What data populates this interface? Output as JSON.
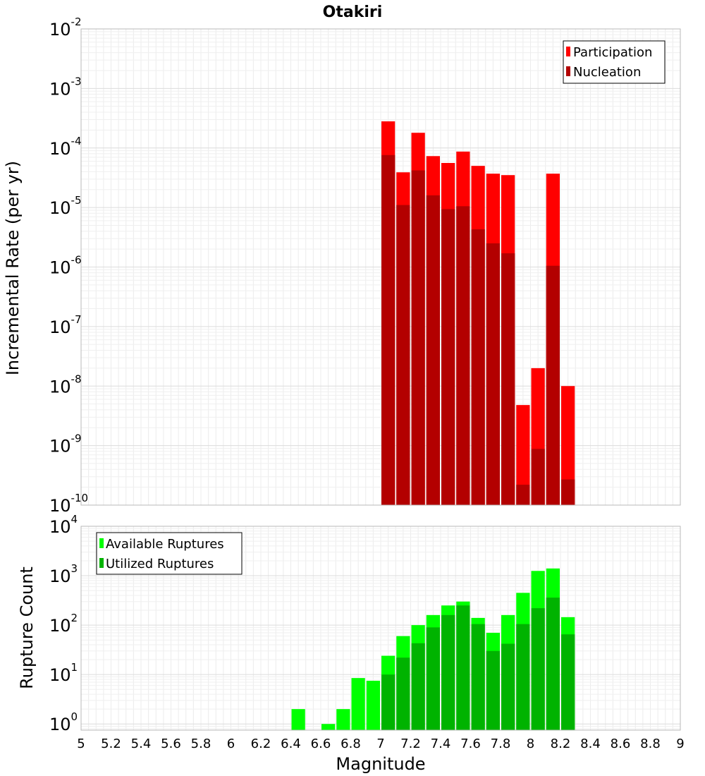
{
  "title": "Otakiri",
  "chart_data": [
    {
      "type": "bar",
      "name": "top",
      "title": "Otakiri",
      "xlabel": "",
      "ylabel": "Incremental Rate (per yr)",
      "xlim": [
        5,
        9
      ],
      "ylim": [
        1e-10,
        0.01
      ],
      "y_scale": "log",
      "grid": true,
      "legend_position": "top-right",
      "bin_width": 0.1,
      "x": [
        7.05,
        7.15,
        7.25,
        7.35,
        7.45,
        7.55,
        7.65,
        7.75,
        7.85,
        7.95,
        8.05,
        8.15,
        8.25
      ],
      "series": [
        {
          "name": "Participation",
          "color": "#ff0000",
          "values": [
            0.00028,
            3.9e-05,
            0.00018,
            7.3e-05,
            5.6e-05,
            8.7e-05,
            5e-05,
            3.7e-05,
            3.5e-05,
            4.8e-09,
            2e-08,
            3.7e-05,
            1e-08
          ]
        },
        {
          "name": "Nucleation",
          "color": "#b30000",
          "values": [
            7.6e-05,
            1.1e-05,
            4.2e-05,
            1.6e-05,
            9.4e-06,
            1.05e-05,
            4.3e-06,
            2.5e-06,
            1.7e-06,
            2.2e-10,
            8.8e-10,
            1.05e-06,
            2.7e-10
          ]
        }
      ],
      "yticks": [
        {
          "base": "10",
          "exp": "-2",
          "value": 0.01
        },
        {
          "base": "10",
          "exp": "-3",
          "value": 0.001
        },
        {
          "base": "10",
          "exp": "-4",
          "value": 0.0001
        },
        {
          "base": "10",
          "exp": "-5",
          "value": 1e-05
        },
        {
          "base": "10",
          "exp": "-6",
          "value": 1e-06
        },
        {
          "base": "10",
          "exp": "-7",
          "value": 1e-07
        },
        {
          "base": "10",
          "exp": "-8",
          "value": 1e-08
        },
        {
          "base": "10",
          "exp": "-9",
          "value": 1e-09
        },
        {
          "base": "10",
          "exp": "-10",
          "value": 1e-10
        }
      ]
    },
    {
      "type": "bar",
      "name": "bottom",
      "title": "",
      "xlabel": "Magnitude",
      "ylabel": "Rupture Count",
      "xlim": [
        5,
        9
      ],
      "ylim": [
        0.75,
        10000
      ],
      "y_scale": "log",
      "grid": true,
      "legend_position": "top-left",
      "bin_width": 0.1,
      "x": [
        6.45,
        6.55,
        6.65,
        6.75,
        6.85,
        6.95,
        7.05,
        7.15,
        7.25,
        7.35,
        7.45,
        7.55,
        7.65,
        7.75,
        7.85,
        7.95,
        8.05,
        8.15,
        8.25
      ],
      "series": [
        {
          "name": "Available Ruptures",
          "color": "#00ff00",
          "values": [
            2,
            0,
            1,
            2,
            8.5,
            7.5,
            24,
            60,
            100,
            160,
            250,
            300,
            140,
            70,
            160,
            450,
            1250,
            1400,
            145
          ]
        },
        {
          "name": "Utilized Ruptures",
          "color": "#00b300",
          "values": [
            0,
            0,
            0,
            0,
            0,
            0,
            10,
            22,
            43,
            90,
            160,
            250,
            105,
            30,
            42,
            105,
            220,
            360,
            65
          ]
        }
      ],
      "yticks": [
        {
          "base": "10",
          "exp": "4",
          "value": 10000
        },
        {
          "base": "10",
          "exp": "3",
          "value": 1000
        },
        {
          "base": "10",
          "exp": "2",
          "value": 100
        },
        {
          "base": "10",
          "exp": "1",
          "value": 10
        },
        {
          "base": "10",
          "exp": "0",
          "value": 1
        }
      ],
      "xticks": [
        "5",
        "5.2",
        "5.4",
        "5.6",
        "5.8",
        "6",
        "6.2",
        "6.4",
        "6.6",
        "6.8",
        "7",
        "7.2",
        "7.4",
        "7.6",
        "7.8",
        "8",
        "8.2",
        "8.4",
        "8.6",
        "8.8",
        "9"
      ]
    }
  ]
}
